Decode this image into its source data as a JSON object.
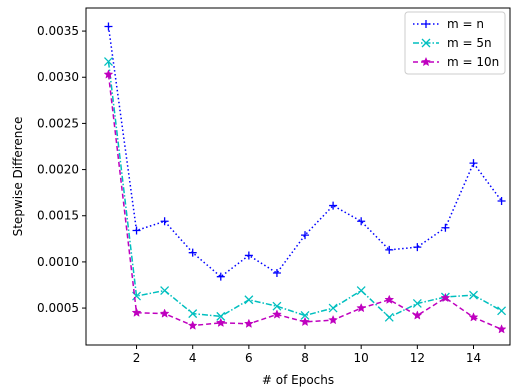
{
  "chart_data": {
    "type": "line",
    "title": "",
    "xlabel": "# of Epochs",
    "ylabel": "Stepwise Difference",
    "xlim": [
      0.2,
      15.3
    ],
    "ylim": [
      0.0001,
      0.00375
    ],
    "xticks": [
      2,
      4,
      6,
      8,
      10,
      12,
      14
    ],
    "xtick_labels": [
      "2",
      "4",
      "6",
      "8",
      "10",
      "12",
      "14"
    ],
    "yticks": [
      0.0005,
      0.001,
      0.0015,
      0.002,
      0.0025,
      0.003,
      0.0035
    ],
    "ytick_labels": [
      "0.0005",
      "0.0010",
      "0.0015",
      "0.0020",
      "0.0025",
      "0.0030",
      "0.0035"
    ],
    "grid": false,
    "legend_position": "top-right",
    "x": [
      1,
      2,
      3,
      4,
      5,
      6,
      7,
      8,
      9,
      10,
      11,
      12,
      13,
      14,
      15
    ],
    "series": [
      {
        "name": "m = n",
        "color": "#0000ff",
        "line_style": "dotted",
        "marker": "plus",
        "values": [
          0.00355,
          0.00134,
          0.00144,
          0.0011,
          0.00084,
          0.00107,
          0.00088,
          0.00129,
          0.00161,
          0.00144,
          0.00113,
          0.00116,
          0.00137,
          0.00207,
          0.00166
        ]
      },
      {
        "name": "m = 5n",
        "color": "#00bfbf",
        "line_style": "dash-dot",
        "marker": "x",
        "values": [
          0.00317,
          0.00063,
          0.00069,
          0.00044,
          0.00041,
          0.00059,
          0.00052,
          0.00042,
          0.0005,
          0.00069,
          0.0004,
          0.00055,
          0.00062,
          0.00064,
          0.00047
        ]
      },
      {
        "name": "m = 10n",
        "color": "#bf00bf",
        "line_style": "dashed",
        "marker": "star",
        "values": [
          0.00303,
          0.00045,
          0.00044,
          0.00031,
          0.00034,
          0.00033,
          0.00043,
          0.00035,
          0.00037,
          0.0005,
          0.00059,
          0.00042,
          0.00061,
          0.0004,
          0.00027
        ]
      }
    ]
  }
}
